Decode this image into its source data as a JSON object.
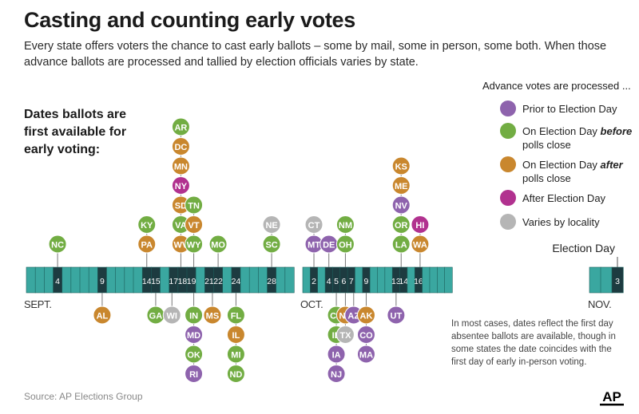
{
  "title": "Casting and counting early votes",
  "subtitle": "Every state offers voters the chance to cast early ballots – some by mail, some in person, some both. When those advance ballots are processed and tallied by election officials varies by state.",
  "side_label": "Dates ballots are first available for early voting:",
  "legend_title": "Advance votes are processed ...",
  "footnote": "In most cases, dates reflect the first day absentee ballots are available, though in some states the date coincides with the first day of early in-person voting.",
  "source": "Source: AP Elections Group",
  "logo_text": "AP",
  "colors": {
    "timeline_cell": "#3aa7a0",
    "timeline_line": "#1c5f5b",
    "timeline_dark": "#1d3b40"
  },
  "chart_data": {
    "type": "timeline",
    "legend": [
      {
        "key": "prior",
        "label": "Prior to Election Day",
        "color": "#8e63ad"
      },
      {
        "key": "before",
        "label": "On Election Day before polls close",
        "color": "#72ad43"
      },
      {
        "key": "after",
        "label": "On Election Day after polls close",
        "color": "#c9872e"
      },
      {
        "key": "afterday",
        "label": "After Election Day",
        "color": "#b1318f"
      },
      {
        "key": "varies",
        "label": "Varies by locality",
        "color": "#b5b5b5"
      }
    ],
    "months": [
      {
        "label": "SEPT.",
        "days": 30
      },
      {
        "label": "OCT.",
        "days": 20
      },
      {
        "label": "NOV.",
        "days": 3
      }
    ],
    "election_day_label": "Election Day",
    "highlighted_days": [
      {
        "month": "SEPT.",
        "day": 4
      },
      {
        "month": "SEPT.",
        "day": 9
      },
      {
        "month": "SEPT.",
        "day": 14
      },
      {
        "month": "SEPT.",
        "day": 15
      },
      {
        "month": "SEPT.",
        "day": 17
      },
      {
        "month": "SEPT.",
        "day": 18
      },
      {
        "month": "SEPT.",
        "day": 19
      },
      {
        "month": "SEPT.",
        "day": 21
      },
      {
        "month": "SEPT.",
        "day": 22
      },
      {
        "month": "SEPT.",
        "day": 24
      },
      {
        "month": "SEPT.",
        "day": 28
      },
      {
        "month": "OCT.",
        "day": 2
      },
      {
        "month": "OCT.",
        "day": 4
      },
      {
        "month": "OCT.",
        "day": 5
      },
      {
        "month": "OCT.",
        "day": 6
      },
      {
        "month": "OCT.",
        "day": 7
      },
      {
        "month": "OCT.",
        "day": 9
      },
      {
        "month": "OCT.",
        "day": 13
      },
      {
        "month": "OCT.",
        "day": 14
      },
      {
        "month": "OCT.",
        "day": 16
      },
      {
        "month": "NOV.",
        "day": 3
      }
    ],
    "groups": [
      {
        "month": "SEPT.",
        "day": 4,
        "above": [
          {
            "state": "NC",
            "cat": "before"
          }
        ],
        "below": []
      },
      {
        "month": "SEPT.",
        "day": 9,
        "above": [],
        "below": [
          {
            "state": "AL",
            "cat": "after"
          }
        ]
      },
      {
        "month": "SEPT.",
        "day": 14,
        "above": [
          {
            "state": "PA",
            "cat": "after"
          },
          {
            "state": "KY",
            "cat": "before"
          }
        ],
        "below": []
      },
      {
        "month": "SEPT.",
        "day": 15,
        "above": [],
        "below": [
          {
            "state": "GA",
            "cat": "before"
          }
        ]
      },
      {
        "month": "SEPT.",
        "day": 17,
        "above": [],
        "below": [
          {
            "state": "WI",
            "cat": "varies"
          }
        ]
      },
      {
        "month": "SEPT.",
        "day": 18,
        "above": [
          {
            "state": "WV",
            "cat": "after"
          },
          {
            "state": "VA",
            "cat": "before"
          },
          {
            "state": "SD",
            "cat": "after"
          },
          {
            "state": "NY",
            "cat": "afterday"
          },
          {
            "state": "MN",
            "cat": "after"
          },
          {
            "state": "DC",
            "cat": "after"
          },
          {
            "state": "AR",
            "cat": "before"
          }
        ],
        "below": []
      },
      {
        "month": "SEPT.",
        "day": 19,
        "above": [
          {
            "state": "WY",
            "cat": "before"
          },
          {
            "state": "VT",
            "cat": "after"
          },
          {
            "state": "TN",
            "cat": "before"
          }
        ],
        "below": [
          {
            "state": "IN",
            "cat": "before"
          },
          {
            "state": "MD",
            "cat": "prior"
          },
          {
            "state": "OK",
            "cat": "before"
          },
          {
            "state": "RI",
            "cat": "prior"
          }
        ]
      },
      {
        "month": "SEPT.",
        "day": 21,
        "above": [],
        "below": [
          {
            "state": "MS",
            "cat": "after"
          }
        ]
      },
      {
        "month": "SEPT.",
        "day": 22,
        "above": [
          {
            "state": "MO",
            "cat": "before"
          }
        ],
        "below": []
      },
      {
        "month": "SEPT.",
        "day": 24,
        "above": [],
        "below": [
          {
            "state": "FL",
            "cat": "before"
          },
          {
            "state": "IL",
            "cat": "after"
          },
          {
            "state": "MI",
            "cat": "before"
          },
          {
            "state": "ND",
            "cat": "before"
          }
        ]
      },
      {
        "month": "SEPT.",
        "day": 28,
        "above": [
          {
            "state": "SC",
            "cat": "before"
          },
          {
            "state": "NE",
            "cat": "varies"
          }
        ],
        "below": []
      },
      {
        "month": "OCT.",
        "day": 2,
        "above": [
          {
            "state": "MT",
            "cat": "prior"
          },
          {
            "state": "CT",
            "cat": "varies"
          }
        ],
        "below": []
      },
      {
        "month": "OCT.",
        "day": 4,
        "above": [
          {
            "state": "DE",
            "cat": "prior"
          }
        ],
        "below": []
      },
      {
        "month": "OCT.",
        "day": 5,
        "above": [],
        "below": [
          {
            "state": "CA",
            "cat": "before"
          },
          {
            "state": "ID",
            "cat": "before"
          },
          {
            "state": "IA",
            "cat": "prior"
          },
          {
            "state": "NJ",
            "cat": "prior"
          }
        ]
      },
      {
        "month": "OCT.",
        "day": 6,
        "above": [
          {
            "state": "OH",
            "cat": "before"
          },
          {
            "state": "NM",
            "cat": "before"
          }
        ],
        "below": [
          {
            "state": "NH",
            "cat": "after"
          },
          {
            "state": "TX",
            "cat": "varies"
          }
        ]
      },
      {
        "month": "OCT.",
        "day": 7,
        "above": [],
        "below": [
          {
            "state": "AZ",
            "cat": "prior"
          }
        ]
      },
      {
        "month": "OCT.",
        "day": 9,
        "above": [],
        "below": [
          {
            "state": "AK",
            "cat": "after"
          },
          {
            "state": "CO",
            "cat": "prior"
          },
          {
            "state": "MA",
            "cat": "prior"
          }
        ]
      },
      {
        "month": "OCT.",
        "day": 13,
        "above": [],
        "below": [
          {
            "state": "UT",
            "cat": "prior"
          }
        ]
      },
      {
        "month": "OCT.",
        "day": 14,
        "above": [
          {
            "state": "LA",
            "cat": "before"
          },
          {
            "state": "OR",
            "cat": "before"
          },
          {
            "state": "NV",
            "cat": "prior"
          },
          {
            "state": "ME",
            "cat": "after"
          },
          {
            "state": "KS",
            "cat": "after"
          }
        ],
        "below": []
      },
      {
        "month": "OCT.",
        "day": 16,
        "above": [
          {
            "state": "WA",
            "cat": "after"
          },
          {
            "state": "HI",
            "cat": "afterday"
          }
        ],
        "below": []
      }
    ]
  }
}
